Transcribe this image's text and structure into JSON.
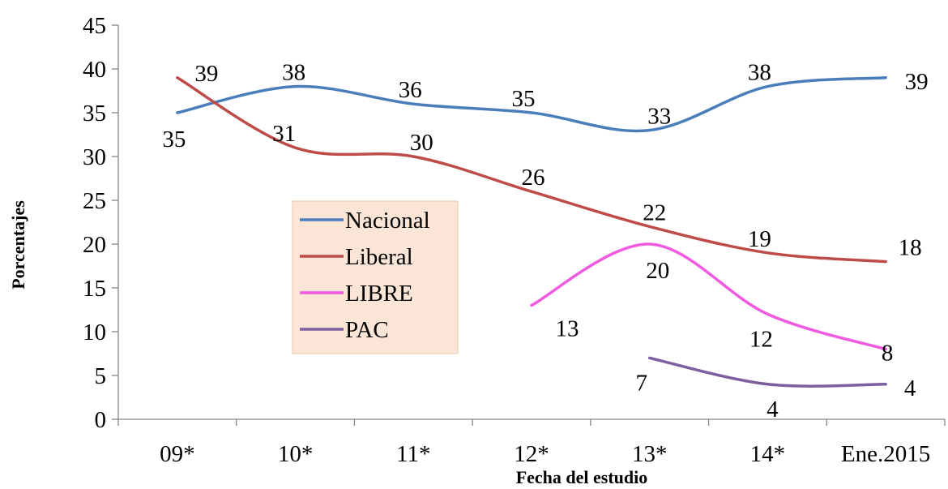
{
  "chart_data": {
    "type": "line",
    "title": "",
    "xlabel": "Fecha del estudio",
    "ylabel": "Porcentajes",
    "categories": [
      "09*",
      "10*",
      "11*",
      "12*",
      "13*",
      "14*",
      "Ene.2015"
    ],
    "ylim": [
      0,
      45
    ],
    "yticks": [
      0,
      5,
      10,
      15,
      20,
      25,
      30,
      35,
      40,
      45
    ],
    "grid": false,
    "smooth": true,
    "legend_position": "center-left",
    "series": [
      {
        "name": "Nacional",
        "color": "#4a7ebb",
        "points": [
          {
            "x": "09*",
            "y": 35
          },
          {
            "x": "10*",
            "y": 38
          },
          {
            "x": "11*",
            "y": 36
          },
          {
            "x": "12*",
            "y": 35
          },
          {
            "x": "13*",
            "y": 33
          },
          {
            "x": "14*",
            "y": 38
          },
          {
            "x": "Ene.2015",
            "y": 39
          }
        ]
      },
      {
        "name": "Liberal",
        "color": "#be4b48",
        "points": [
          {
            "x": "09*",
            "y": 39
          },
          {
            "x": "10*",
            "y": 31
          },
          {
            "x": "11*",
            "y": 30
          },
          {
            "x": "12*",
            "y": 26
          },
          {
            "x": "13*",
            "y": 22
          },
          {
            "x": "14*",
            "y": 19
          },
          {
            "x": "Ene.2015",
            "y": 18
          }
        ]
      },
      {
        "name": "LIBRE",
        "color": "#f05ae0",
        "points": [
          {
            "x": "12*",
            "y": 13
          },
          {
            "x": "13*",
            "y": 20
          },
          {
            "x": "14*",
            "y": 12
          },
          {
            "x": "Ene.2015",
            "y": 8
          }
        ]
      },
      {
        "name": "PAC",
        "color": "#7d5fa0",
        "points": [
          {
            "x": "13*",
            "y": 7
          },
          {
            "x": "14*",
            "y": 4
          },
          {
            "x": "Ene.2015",
            "y": 4
          }
        ]
      }
    ]
  }
}
